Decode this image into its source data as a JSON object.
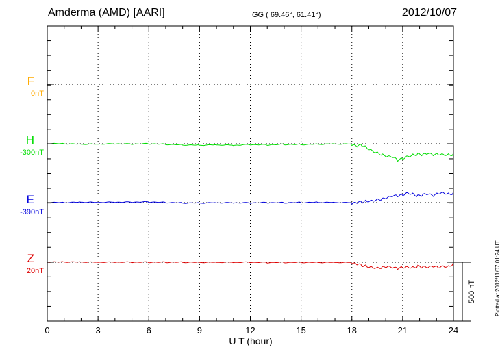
{
  "header": {
    "station": "Amderma (AMD)  [AARI]",
    "coords": "GG ( 69.46°,  61.41°)",
    "date": "2012/10/07"
  },
  "footer": {
    "plotted": "Plotted at 2012/11/07 01:24 UT"
  },
  "colors": {
    "F": "#ffaa00",
    "H": "#00dd00",
    "E": "#0000dd",
    "Z": "#dd0000",
    "grid": "#000000"
  },
  "chart_data": {
    "type": "line",
    "xlabel": "U T (hour)",
    "xlim": [
      0,
      24
    ],
    "xticks": [
      0,
      3,
      6,
      9,
      12,
      15,
      18,
      21,
      24
    ],
    "scale_bar": {
      "label": "500 nT",
      "value_nT": 500
    },
    "channels": [
      {
        "name": "F",
        "offset_label": "0nT",
        "color": "#ffaa00"
      },
      {
        "name": "H",
        "offset_label": "-300nT",
        "color": "#00dd00"
      },
      {
        "name": "E",
        "offset_label": "-390nT",
        "color": "#0000dd"
      },
      {
        "name": "Z",
        "offset_label": "20nT",
        "color": "#dd0000"
      }
    ],
    "series": [
      {
        "channel": "H",
        "unit": "nT",
        "baseline": -300,
        "x": [
          0,
          1,
          2,
          3,
          4,
          5,
          6,
          7,
          8,
          9,
          10,
          11,
          12,
          13,
          14,
          15,
          16,
          17,
          18,
          18.3,
          18.6,
          18.9,
          19.2,
          19.5,
          19.8,
          20.1,
          20.4,
          20.7,
          21.0,
          21.3,
          21.6,
          21.9,
          22.2,
          22.5,
          22.8,
          23.1,
          23.4,
          23.7,
          24
        ],
        "values": [
          -300,
          -302,
          -306,
          -305,
          -302,
          -304,
          -301,
          -306,
          -311,
          -313,
          -310,
          -313,
          -307,
          -309,
          -305,
          -306,
          -303,
          -301,
          -302,
          -306,
          -298,
          -320,
          -345,
          -362,
          -380,
          -395,
          -398,
          -425,
          -410,
          -390,
          -380,
          -374,
          -380,
          -370,
          -382,
          -375,
          -378,
          -382,
          -380
        ]
      },
      {
        "channel": "E",
        "unit": "nT",
        "baseline": -390,
        "x": [
          0,
          1,
          2,
          3,
          4,
          5,
          6,
          7,
          8,
          9,
          10,
          11,
          12,
          13,
          14,
          15,
          16,
          17,
          18,
          18.3,
          18.6,
          18.9,
          19.2,
          19.5,
          19.8,
          20.1,
          20.4,
          20.7,
          21.0,
          21.3,
          21.6,
          21.9,
          22.2,
          22.5,
          22.8,
          23.1,
          23.4,
          23.7,
          24
        ],
        "values": [
          -390,
          -392,
          -388,
          -390,
          -388,
          -387,
          -385,
          -390,
          -394,
          -394,
          -392,
          -392,
          -392,
          -390,
          -391,
          -389,
          -387,
          -388,
          -390,
          -376,
          -372,
          -362,
          -358,
          -350,
          -345,
          -335,
          -320,
          -317,
          -307,
          -292,
          -302,
          -320,
          -310,
          -305,
          -318,
          -298,
          -292,
          -305,
          -300
        ]
      },
      {
        "channel": "Z",
        "unit": "nT",
        "baseline": 20,
        "x": [
          0,
          1,
          2,
          3,
          4,
          5,
          6,
          7,
          8,
          9,
          10,
          11,
          12,
          13,
          14,
          15,
          16,
          17,
          18,
          18.3,
          18.6,
          18.9,
          19.2,
          19.5,
          19.8,
          20.1,
          20.4,
          20.7,
          21.0,
          21.3,
          21.6,
          21.9,
          22.2,
          22.5,
          22.8,
          23.1,
          23.4,
          23.7,
          24
        ],
        "values": [
          20,
          20,
          20,
          18,
          19,
          19,
          19,
          19,
          19,
          18,
          19,
          19,
          20,
          18,
          19,
          19,
          19,
          19,
          19,
          18,
          5,
          0,
          -8,
          -14,
          -10,
          -5,
          -12,
          -18,
          -8,
          -5,
          -10,
          0,
          -8,
          -12,
          -2,
          -10,
          0,
          -6,
          20
        ]
      }
    ]
  }
}
